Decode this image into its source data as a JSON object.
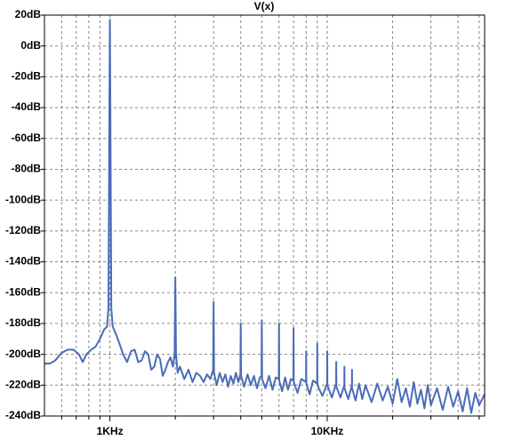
{
  "chart_data": {
    "type": "line",
    "title": "V(x)",
    "title_color": "#3a5fcd",
    "xscale": "log",
    "grid": true,
    "xlim": [
      500,
      53000
    ],
    "xticks": [
      {
        "value": 1000,
        "label": "1KHz"
      },
      {
        "value": 10000,
        "label": "10KHz"
      }
    ],
    "x_minor_ticks": [
      600,
      700,
      800,
      900,
      2000,
      3000,
      4000,
      5000,
      6000,
      7000,
      8000,
      9000,
      20000,
      30000,
      40000,
      50000
    ],
    "ylim": [
      -240,
      20
    ],
    "yticks": [
      {
        "value": -240,
        "label": "-240dB"
      },
      {
        "value": -220,
        "label": "-220dB"
      },
      {
        "value": -200,
        "label": "-200dB"
      },
      {
        "value": -180,
        "label": "-180dB"
      },
      {
        "value": -160,
        "label": "-160dB"
      },
      {
        "value": -140,
        "label": "-140dB"
      },
      {
        "value": -120,
        "label": "-120dB"
      },
      {
        "value": -100,
        "label": "-100dB"
      },
      {
        "value": -80,
        "label": "-80dB"
      },
      {
        "value": -60,
        "label": "-60dB"
      },
      {
        "value": -40,
        "label": "-40dB"
      },
      {
        "value": -20,
        "label": "-20dB"
      },
      {
        "value": 0,
        "label": "0dB"
      },
      {
        "value": 20,
        "label": "20dB"
      }
    ],
    "x": [
      500,
      530,
      560,
      600,
      640,
      680,
      720,
      750,
      780,
      820,
      860,
      900,
      940,
      970,
      985,
      995,
      1000,
      1005,
      1015,
      1030,
      1060,
      1100,
      1150,
      1200,
      1250,
      1300,
      1350,
      1400,
      1450,
      1500,
      1550,
      1600,
      1650,
      1700,
      1750,
      1800,
      1850,
      1900,
      1950,
      1985,
      2000,
      2015,
      2050,
      2100,
      2200,
      2300,
      2400,
      2500,
      2600,
      2700,
      2800,
      2900,
      2985,
      3000,
      3015,
      3100,
      3200,
      3300,
      3400,
      3500,
      3600,
      3700,
      3800,
      3900,
      3985,
      4000,
      4015,
      4150,
      4300,
      4450,
      4600,
      4750,
      4900,
      4985,
      5000,
      5015,
      5200,
      5400,
      5600,
      5800,
      5985,
      6000,
      6015,
      6200,
      6400,
      6600,
      6800,
      6985,
      7000,
      7015,
      7300,
      7600,
      7985,
      8000,
      8015,
      8300,
      8600,
      8985,
      9000,
      9015,
      9500,
      9985,
      10000,
      10015,
      10500,
      10985,
      11000,
      11015,
      11500,
      11985,
      12000,
      12015,
      12500,
      12985,
      13000,
      13015,
      13500,
      14000,
      14500,
      15000,
      16000,
      17000,
      18000,
      19000,
      20000,
      21000,
      22000,
      23000,
      24000,
      25000,
      26000,
      27000,
      28000,
      29000,
      30000,
      32000,
      34000,
      36000,
      38000,
      40000,
      42000,
      44000,
      46000,
      48000,
      50000,
      53000
    ],
    "series": [
      {
        "color": "#4a6cb8",
        "values": [
          -206,
          -206,
          -204,
          -199,
          -197,
          -197,
          -200,
          -205,
          -200,
          -197,
          -195,
          -190,
          -184,
          -182,
          -170,
          -40,
          17,
          -40,
          -170,
          -182,
          -186,
          -192,
          -200,
          -205,
          -198,
          -197,
          -205,
          -204,
          -198,
          -200,
          -210,
          -208,
          -200,
          -203,
          -214,
          -210,
          -205,
          -202,
          -208,
          -200,
          -150,
          -200,
          -212,
          -208,
          -216,
          -210,
          -218,
          -212,
          -214,
          -218,
          -213,
          -216,
          -210,
          -166,
          -212,
          -220,
          -212,
          -218,
          -213,
          -221,
          -214,
          -219,
          -212,
          -218,
          -213,
          -180,
          -214,
          -221,
          -213,
          -220,
          -214,
          -222,
          -215,
          -214,
          -178,
          -216,
          -222,
          -214,
          -223,
          -215,
          -216,
          -180,
          -217,
          -224,
          -215,
          -223,
          -216,
          -217,
          -183,
          -218,
          -225,
          -216,
          -218,
          -198,
          -219,
          -226,
          -217,
          -219,
          -193,
          -220,
          -227,
          -219,
          -198,
          -220,
          -228,
          -219,
          -205,
          -221,
          -228,
          -220,
          -208,
          -222,
          -229,
          -220,
          -210,
          -222,
          -230,
          -219,
          -229,
          -220,
          -231,
          -219,
          -230,
          -221,
          -232,
          -216,
          -231,
          -222,
          -234,
          -218,
          -232,
          -223,
          -235,
          -220,
          -233,
          -222,
          -236,
          -221,
          -234,
          -224,
          -237,
          -222,
          -238,
          -225,
          -233,
          -226
        ]
      }
    ]
  }
}
